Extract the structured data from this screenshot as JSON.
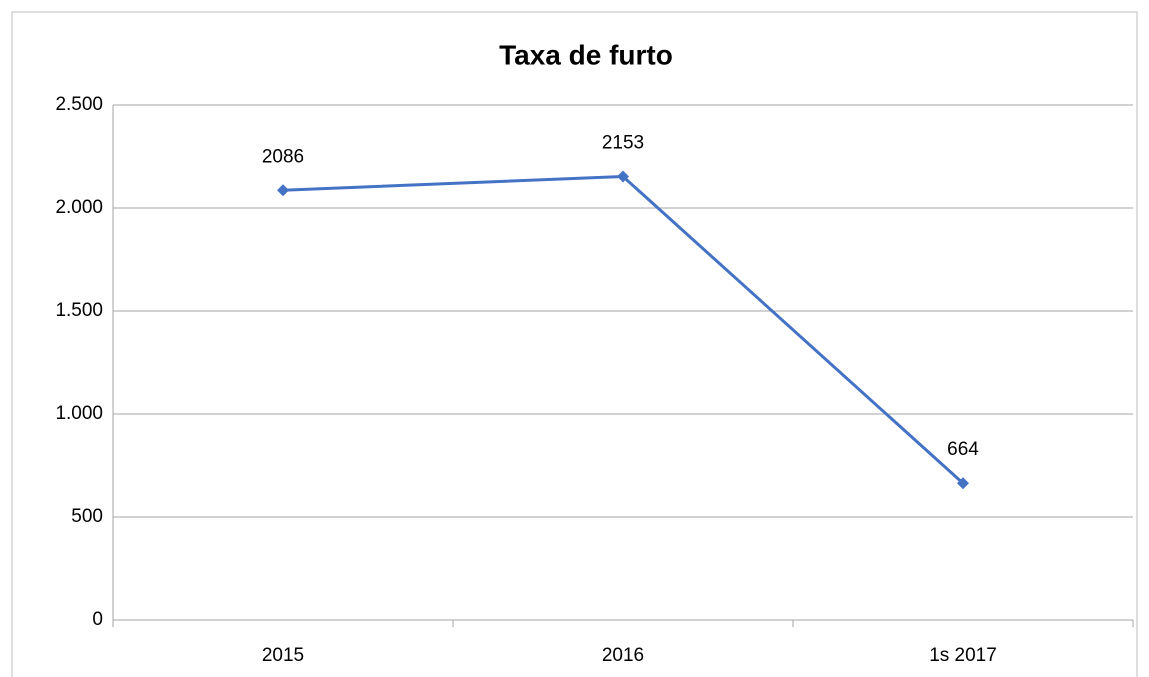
{
  "chart_data": {
    "type": "line",
    "title": "Taxa de furto",
    "categories": [
      "2015",
      "2016",
      "1s 2017"
    ],
    "series": [
      {
        "name": "Taxa de furto",
        "color": "#4472c4",
        "values": [
          2086,
          2153,
          664
        ]
      }
    ],
    "ylim": [
      0,
      2500
    ],
    "yticks": [
      0,
      {
        "value": 500,
        "label": "500"
      },
      {
        "value": 1000,
        "label": "1.000"
      },
      {
        "value": 1500,
        "label": "1.500"
      },
      {
        "value": 2000,
        "label": "2.000"
      },
      {
        "value": 2500,
        "label": "2.500"
      }
    ],
    "grid": true
  }
}
